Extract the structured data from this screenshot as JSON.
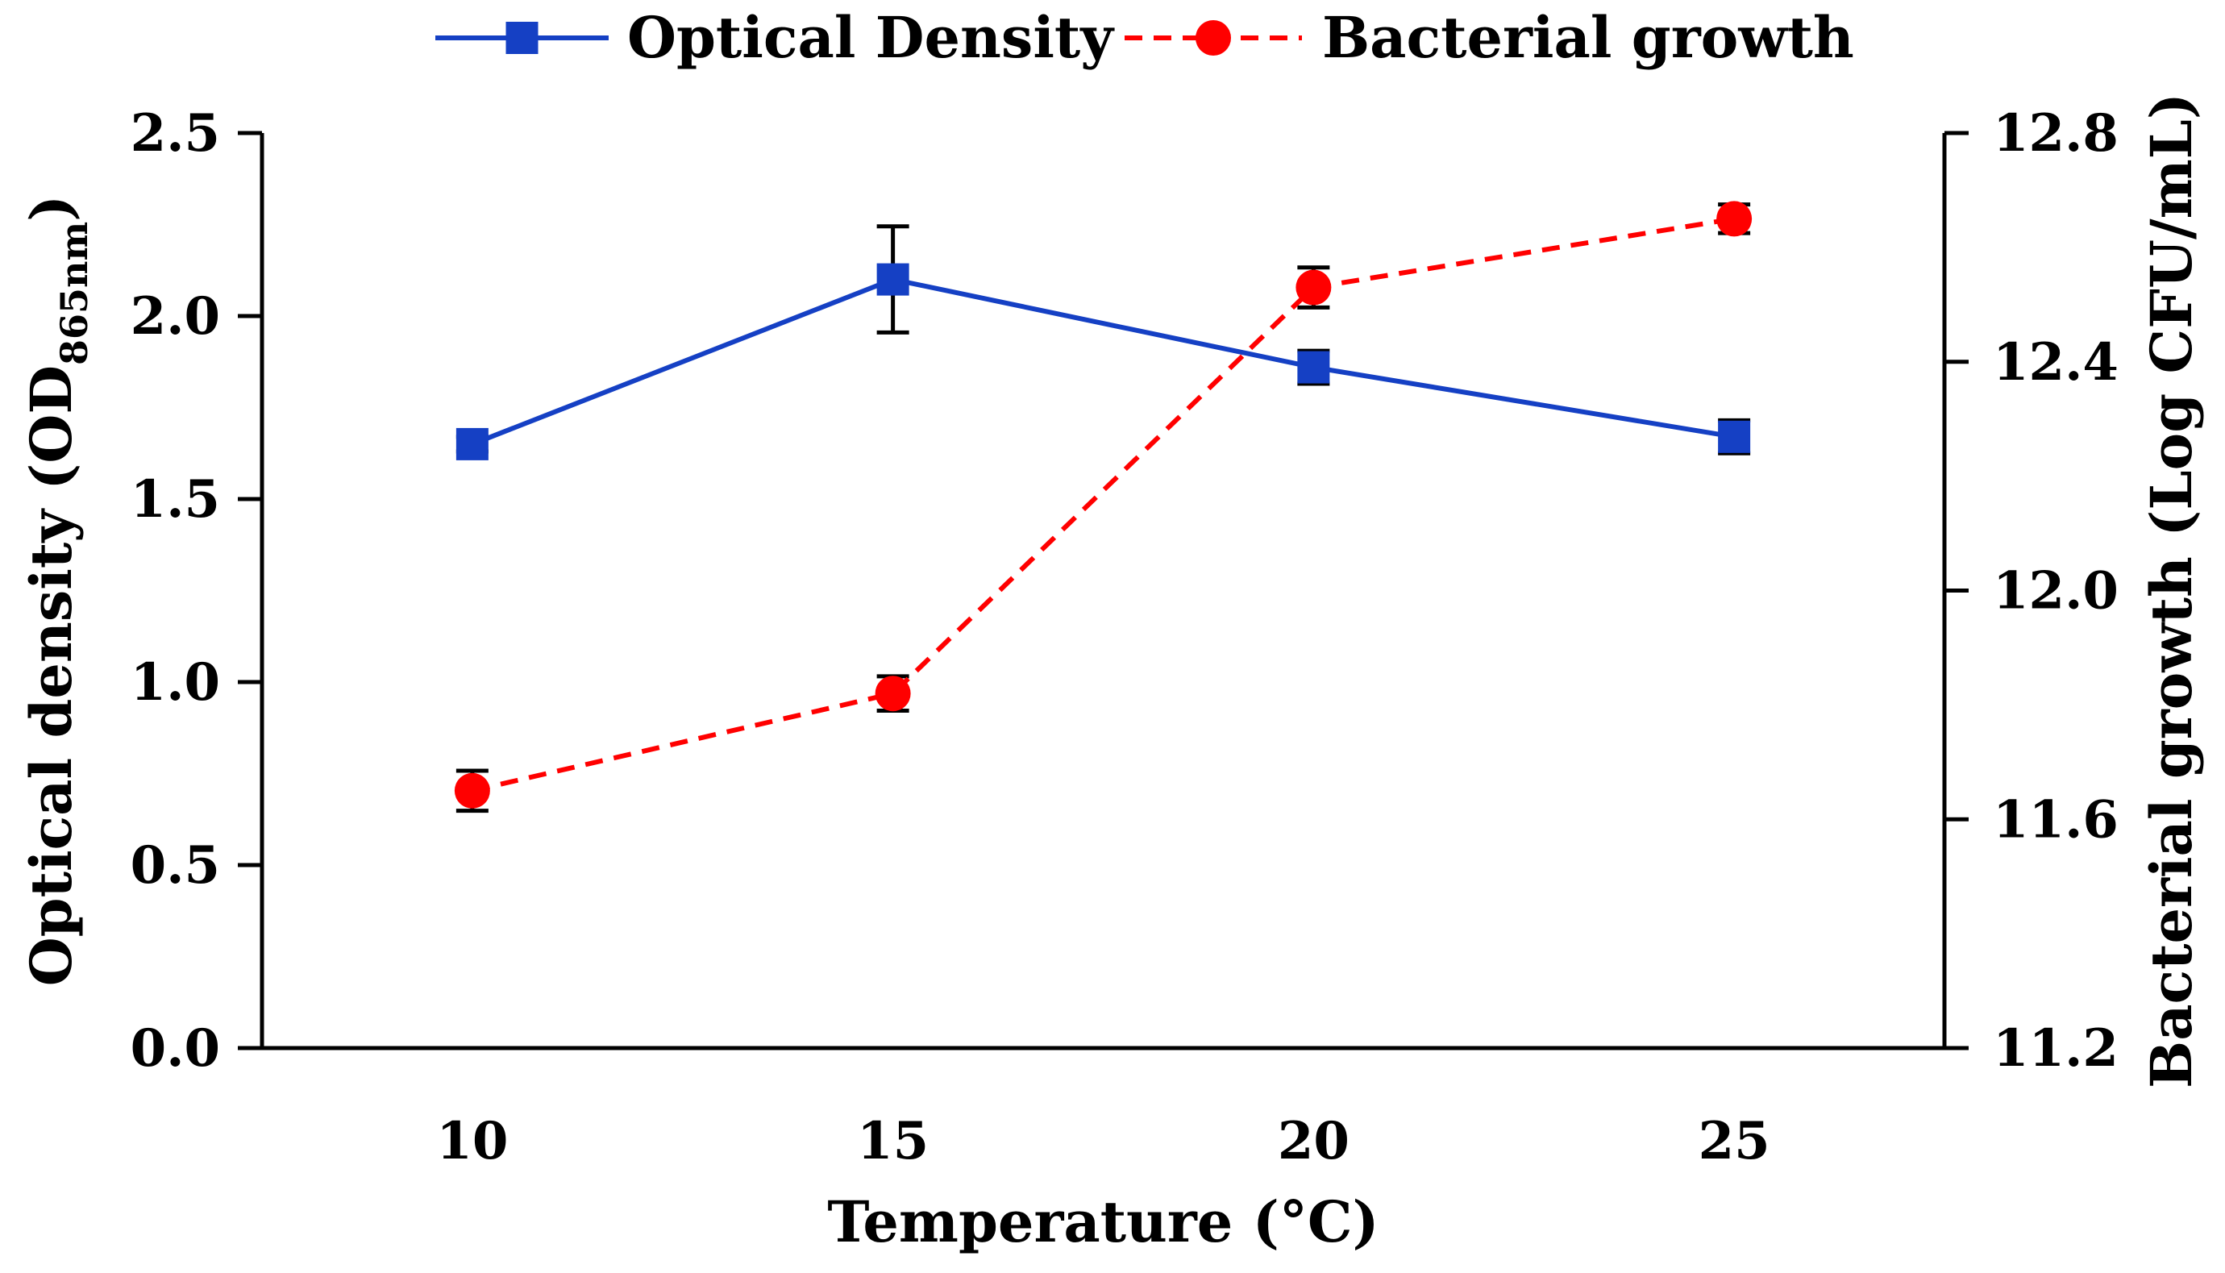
{
  "chart_data": {
    "type": "line",
    "x": [
      10,
      15,
      20,
      25
    ],
    "xlabel": "Temperature (°C)",
    "xlim": [
      7.5,
      27.5
    ],
    "x_ticks": [
      "10",
      "15",
      "20",
      "25"
    ],
    "ylabel_left": {
      "main": "Optical density (OD",
      "sub": "865nm",
      "close": ")"
    },
    "ylabel_right": "Bacterial growth (Log CFU/mL)",
    "ylim_left": [
      0.0,
      2.5
    ],
    "y_ticks_left": [
      "0.0",
      "0.5",
      "1.0",
      "1.5",
      "2.0",
      "2.5"
    ],
    "ylim_right": [
      11.2,
      12.8
    ],
    "y_ticks_right": [
      "11.2",
      "11.6",
      "12.0",
      "12.4",
      "12.8"
    ],
    "grid": false,
    "legend_position": "top-center",
    "series": [
      {
        "name": "Optical Density",
        "axis": "left",
        "color": "#1540C4",
        "line_style": "solid",
        "marker": "square",
        "values": [
          1.65,
          2.1,
          1.86,
          1.67
        ],
        "errors": [
          0.02,
          0.145,
          0.045,
          0.045
        ]
      },
      {
        "name": "Bacterial growth",
        "axis": "right",
        "color": "#FF0000",
        "line_style": "dashed",
        "marker": "circle",
        "values": [
          11.65,
          11.82,
          12.53,
          12.65
        ],
        "errors": [
          0.035,
          0.03,
          0.035,
          0.025
        ]
      }
    ]
  }
}
